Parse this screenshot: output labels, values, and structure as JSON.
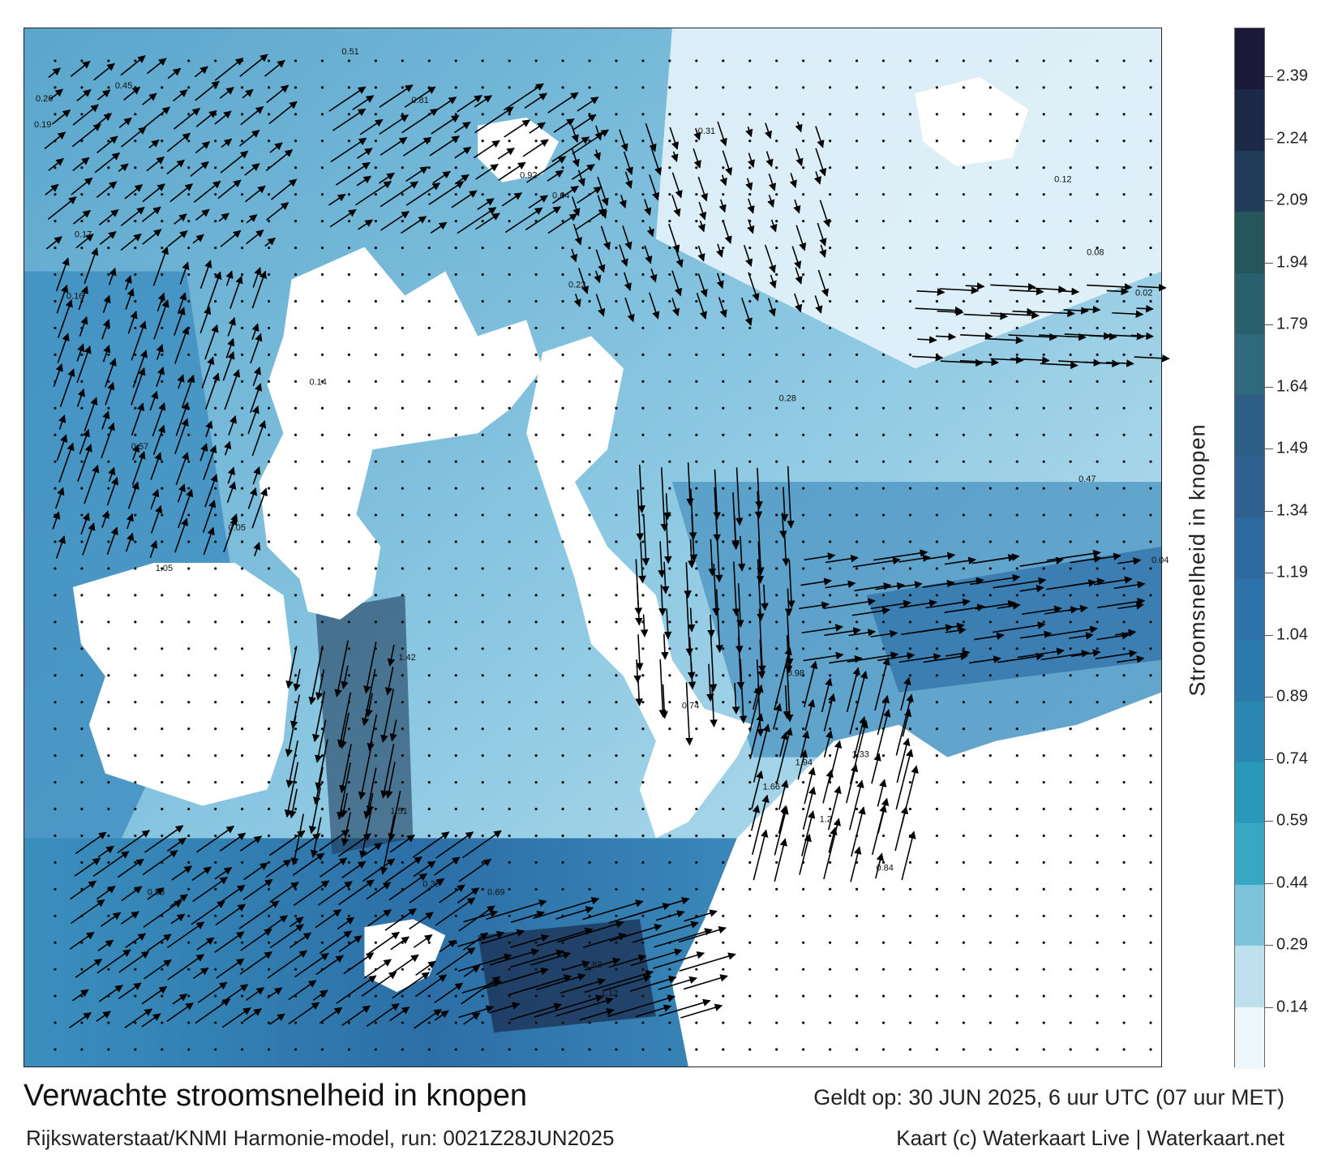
{
  "map": {
    "title": "Verwachte stroomsnelheid in knopen",
    "model_line": "Rijkswaterstaat/KNMI Harmonie-model, run: 0021Z28JUN2025",
    "valid_line": "Geldt op: 30 JUN 2025, 6 uur UTC (07 uur MET)",
    "credit_line": "Kaart (c) Waterkaart Live | Waterkaart.net",
    "land_color": "#ffffff",
    "arrow_color": "#000000",
    "sample_values": [
      {
        "text": "0.51"
      },
      {
        "text": "0.45"
      },
      {
        "text": "0.26"
      },
      {
        "text": "0.19"
      },
      {
        "text": "0.17"
      },
      {
        "text": "0.16"
      },
      {
        "text": "0.81"
      },
      {
        "text": "0.92"
      },
      {
        "text": "0.64"
      },
      {
        "text": "0.31"
      },
      {
        "text": "0.28"
      },
      {
        "text": "0.12"
      },
      {
        "text": "0.08"
      },
      {
        "text": "0.47"
      },
      {
        "text": "0.57"
      },
      {
        "text": "1.05"
      },
      {
        "text": "1.42"
      },
      {
        "text": "1.94"
      },
      {
        "text": "1.51"
      },
      {
        "text": "1.33"
      },
      {
        "text": "0.98"
      },
      {
        "text": "1.83"
      },
      {
        "text": "1.12"
      },
      {
        "text": "0.53"
      },
      {
        "text": "0.35"
      },
      {
        "text": "0.04"
      },
      {
        "text": "0.02"
      },
      {
        "text": "0.69"
      },
      {
        "text": "0.74"
      },
      {
        "text": "0.84"
      },
      {
        "text": "1.66"
      },
      {
        "text": "1.2"
      },
      {
        "text": "0.22"
      },
      {
        "text": "0.14"
      },
      {
        "text": "0.05"
      }
    ]
  },
  "colorbar": {
    "title": "Stroomsnelheid in knopen",
    "ticks": [
      "2.39",
      "2.24",
      "2.09",
      "1.94",
      "1.79",
      "1.64",
      "1.49",
      "1.34",
      "1.19",
      "1.04",
      "0.89",
      "0.74",
      "0.59",
      "0.44",
      "0.29",
      "0.14"
    ],
    "colors": [
      "#1a1a38",
      "#1c2a48",
      "#203c5a",
      "#25565c",
      "#2a5f6e",
      "#2e6a7c",
      "#2f5e84",
      "#30608f",
      "#2f6a9e",
      "#2d72a8",
      "#2c7aac",
      "#2a88b0",
      "#2a98b8",
      "#38a7c4",
      "#7cc3da",
      "#bde0ec",
      "#eef7fb"
    ]
  }
}
